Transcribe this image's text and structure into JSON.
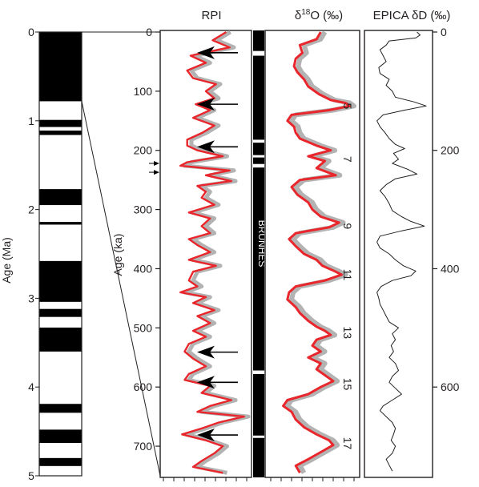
{
  "chart_data": [
    {
      "type": "polarity-column",
      "ylabel": "Age (Ma)",
      "ylim": [
        0,
        5
      ],
      "y_ticks": [
        0,
        1,
        2,
        3,
        4,
        5
      ],
      "tick_labels": [
        "0",
        "1",
        "2",
        "3",
        "4",
        "5"
      ],
      "white_intervals": [
        [
          0.78,
          0.99
        ],
        [
          1.07,
          1.11
        ],
        [
          1.16,
          1.77
        ],
        [
          1.95,
          2.14
        ],
        [
          2.17,
          2.58
        ],
        [
          3.04,
          3.12
        ],
        [
          3.21,
          3.33
        ],
        [
          3.6,
          4.19
        ],
        [
          4.29,
          4.48
        ],
        [
          4.63,
          4.8
        ],
        [
          4.89,
          5.0
        ]
      ],
      "expanded_interval_ka": [
        0,
        780
      ]
    },
    {
      "type": "line",
      "title": "RPI",
      "ylabel": "Age (ka)",
      "ylim": [
        0,
        750
      ],
      "y_ticks": [
        0,
        100,
        200,
        300,
        400,
        500,
        600,
        700
      ],
      "tick_labels": [
        "0",
        "100",
        "200",
        "300",
        "400",
        "500",
        "600",
        "700"
      ],
      "x_ticks_count": 9,
      "series": [
        {
          "color": "#e8262b",
          "points": [
            [
              0,
              0.74
            ],
            [
              14,
              0.58
            ],
            [
              26,
              0.78
            ],
            [
              40,
              0.32
            ],
            [
              52,
              0.5
            ],
            [
              65,
              0.28
            ],
            [
              78,
              0.35
            ],
            [
              88,
              0.62
            ],
            [
              100,
              0.5
            ],
            [
              112,
              0.6
            ],
            [
              122,
              0.38
            ],
            [
              132,
              0.55
            ],
            [
              145,
              0.35
            ],
            [
              158,
              0.6
            ],
            [
              170,
              0.46
            ],
            [
              182,
              0.28
            ],
            [
              192,
              0.28
            ],
            [
              200,
              0.4
            ],
            [
              210,
              0.7
            ],
            [
              220,
              0.28
            ],
            [
              226,
              0.2
            ],
            [
              234,
              0.78
            ],
            [
              242,
              0.5
            ],
            [
              252,
              0.8
            ],
            [
              260,
              0.4
            ],
            [
              270,
              0.5
            ],
            [
              280,
              0.45
            ],
            [
              292,
              0.6
            ],
            [
              305,
              0.3
            ],
            [
              315,
              0.55
            ],
            [
              328,
              0.45
            ],
            [
              340,
              0.55
            ],
            [
              350,
              0.3
            ],
            [
              360,
              0.4
            ],
            [
              372,
              0.55
            ],
            [
              385,
              0.3
            ],
            [
              395,
              0.62
            ],
            [
              405,
              0.35
            ],
            [
              420,
              0.3
            ],
            [
              430,
              0.4
            ],
            [
              440,
              0.2
            ],
            [
              448,
              0.5
            ],
            [
              458,
              0.35
            ],
            [
              470,
              0.6
            ],
            [
              480,
              0.4
            ],
            [
              492,
              0.55
            ],
            [
              505,
              0.35
            ],
            [
              515,
              0.5
            ],
            [
              527,
              0.3
            ],
            [
              540,
              0.25
            ],
            [
              552,
              0.35
            ],
            [
              565,
              0.5
            ],
            [
              578,
              0.3
            ],
            [
              588,
              0.25
            ],
            [
              598,
              0.55
            ],
            [
              610,
              0.45
            ],
            [
              622,
              0.8
            ],
            [
              632,
              0.55
            ],
            [
              642,
              0.4
            ],
            [
              650,
              0.95
            ],
            [
              660,
              0.65
            ],
            [
              670,
              0.45
            ],
            [
              680,
              0.22
            ],
            [
              690,
              0.5
            ],
            [
              700,
              0.7
            ],
            [
              712,
              0.6
            ],
            [
              725,
              0.45
            ],
            [
              735,
              0.35
            ],
            [
              745,
              0.7
            ]
          ]
        },
        {
          "color": "#b3b3b3",
          "role": "uncertainty"
        }
      ],
      "annotations": [
        {
          "type": "arrow",
          "age": 35
        },
        {
          "type": "arrow",
          "age": 122
        },
        {
          "type": "arrow",
          "age": 194
        },
        {
          "type": "small-arrow",
          "age": 222
        },
        {
          "type": "small-arrow",
          "age": 237
        },
        {
          "type": "arrow",
          "age": 541
        },
        {
          "type": "arrow",
          "age": 592
        },
        {
          "type": "arrow",
          "age": 681
        }
      ]
    },
    {
      "type": "polarity-column",
      "label": "BRUNHES",
      "white_intervals_ka": [
        [
          32,
          40
        ],
        [
          182,
          187
        ],
        [
          208,
          212
        ],
        [
          223,
          229
        ],
        [
          572,
          578
        ],
        [
          682,
          686
        ]
      ]
    },
    {
      "type": "line",
      "title_main": "δ",
      "title_sup": "18",
      "title_rest": "O (‰)",
      "x_ticks_count": 9,
      "stage_labels": [
        {
          "label": "5",
          "age": 125
        },
        {
          "label": "7",
          "age": 215
        },
        {
          "label": "9",
          "age": 328
        },
        {
          "label": "11",
          "age": 410
        },
        {
          "label": "13",
          "age": 508
        },
        {
          "label": "15",
          "age": 595
        },
        {
          "label": "17",
          "age": 695
        }
      ],
      "series": [
        {
          "color": "#e8262b",
          "points": [
            [
              0,
              0.6
            ],
            [
              12,
              0.55
            ],
            [
              22,
              0.35
            ],
            [
              35,
              0.38
            ],
            [
              45,
              0.3
            ],
            [
              58,
              0.28
            ],
            [
              68,
              0.32
            ],
            [
              80,
              0.4
            ],
            [
              92,
              0.45
            ],
            [
              105,
              0.58
            ],
            [
              115,
              0.72
            ],
            [
              120,
              0.9
            ],
            [
              125,
              0.95
            ],
            [
              132,
              0.7
            ],
            [
              140,
              0.25
            ],
            [
              150,
              0.2
            ],
            [
              160,
              0.28
            ],
            [
              170,
              0.3
            ],
            [
              180,
              0.35
            ],
            [
              192,
              0.55
            ],
            [
              200,
              0.72
            ],
            [
              210,
              0.45
            ],
            [
              218,
              0.65
            ],
            [
              230,
              0.55
            ],
            [
              242,
              0.78
            ],
            [
              250,
              0.35
            ],
            [
              262,
              0.25
            ],
            [
              275,
              0.32
            ],
            [
              288,
              0.45
            ],
            [
              300,
              0.5
            ],
            [
              312,
              0.6
            ],
            [
              322,
              0.82
            ],
            [
              330,
              0.7
            ],
            [
              340,
              0.3
            ],
            [
              350,
              0.22
            ],
            [
              362,
              0.3
            ],
            [
              375,
              0.4
            ],
            [
              385,
              0.55
            ],
            [
              395,
              0.62
            ],
            [
              403,
              0.75
            ],
            [
              410,
              0.85
            ],
            [
              420,
              0.65
            ],
            [
              430,
              0.3
            ],
            [
              440,
              0.22
            ],
            [
              452,
              0.2
            ],
            [
              465,
              0.3
            ],
            [
              475,
              0.35
            ],
            [
              488,
              0.45
            ],
            [
              498,
              0.55
            ],
            [
              505,
              0.65
            ],
            [
              512,
              0.72
            ],
            [
              520,
              0.55
            ],
            [
              530,
              0.5
            ],
            [
              540,
              0.6
            ],
            [
              550,
              0.45
            ],
            [
              560,
              0.6
            ],
            [
              570,
              0.55
            ],
            [
              580,
              0.65
            ],
            [
              590,
              0.75
            ],
            [
              600,
              0.6
            ],
            [
              612,
              0.45
            ],
            [
              622,
              0.2
            ],
            [
              632,
              0.15
            ],
            [
              642,
              0.25
            ],
            [
              655,
              0.3
            ],
            [
              668,
              0.4
            ],
            [
              680,
              0.55
            ],
            [
              690,
              0.7
            ],
            [
              698,
              0.75
            ],
            [
              710,
              0.6
            ],
            [
              722,
              0.45
            ],
            [
              733,
              0.3
            ],
            [
              745,
              0.35
            ]
          ]
        },
        {
          "color": "#b3b3b3",
          "role": "uncertainty"
        }
      ]
    },
    {
      "type": "line",
      "title": "EPICA δD (‰)",
      "ylim": [
        0,
        750
      ],
      "y_ticks": [
        0,
        200,
        400,
        600
      ],
      "tick_labels": [
        "0",
        "200",
        "400",
        "600"
      ],
      "series": [
        {
          "color": "#231f20",
          "points": [
            [
              0,
              0.8
            ],
            [
              5,
              0.85
            ],
            [
              10,
              0.78
            ],
            [
              15,
              0.35
            ],
            [
              22,
              0.3
            ],
            [
              30,
              0.2
            ],
            [
              40,
              0.25
            ],
            [
              50,
              0.3
            ],
            [
              60,
              0.18
            ],
            [
              70,
              0.2
            ],
            [
              80,
              0.35
            ],
            [
              90,
              0.3
            ],
            [
              100,
              0.4
            ],
            [
              110,
              0.45
            ],
            [
              118,
              0.75
            ],
            [
              125,
              0.95
            ],
            [
              132,
              0.6
            ],
            [
              140,
              0.25
            ],
            [
              150,
              0.15
            ],
            [
              160,
              0.2
            ],
            [
              170,
              0.28
            ],
            [
              180,
              0.35
            ],
            [
              190,
              0.45
            ],
            [
              197,
              0.6
            ],
            [
              205,
              0.42
            ],
            [
              215,
              0.5
            ],
            [
              222,
              0.4
            ],
            [
              232,
              0.65
            ],
            [
              240,
              0.8
            ],
            [
              248,
              0.45
            ],
            [
              258,
              0.3
            ],
            [
              268,
              0.2
            ],
            [
              278,
              0.28
            ],
            [
              290,
              0.35
            ],
            [
              302,
              0.4
            ],
            [
              312,
              0.55
            ],
            [
              320,
              0.7
            ],
            [
              328,
              0.92
            ],
            [
              336,
              0.55
            ],
            [
              345,
              0.2
            ],
            [
              355,
              0.15
            ],
            [
              365,
              0.2
            ],
            [
              375,
              0.35
            ],
            [
              385,
              0.45
            ],
            [
              395,
              0.58
            ],
            [
              404,
              0.78
            ],
            [
              412,
              0.7
            ],
            [
              420,
              0.4
            ],
            [
              430,
              0.22
            ],
            [
              440,
              0.15
            ],
            [
              450,
              0.18
            ],
            [
              460,
              0.2
            ],
            [
              470,
              0.25
            ],
            [
              480,
              0.3
            ],
            [
              490,
              0.35
            ],
            [
              500,
              0.5
            ],
            [
              510,
              0.4
            ],
            [
              520,
              0.45
            ],
            [
              530,
              0.38
            ],
            [
              540,
              0.42
            ],
            [
              550,
              0.35
            ],
            [
              560,
              0.45
            ],
            [
              572,
              0.5
            ],
            [
              582,
              0.4
            ],
            [
              592,
              0.35
            ],
            [
              602,
              0.45
            ],
            [
              612,
              0.55
            ],
            [
              622,
              0.4
            ],
            [
              632,
              0.25
            ],
            [
              640,
              0.2
            ],
            [
              650,
              0.3
            ],
            [
              660,
              0.4
            ],
            [
              670,
              0.45
            ],
            [
              680,
              0.42
            ],
            [
              690,
              0.38
            ],
            [
              700,
              0.45
            ],
            [
              712,
              0.4
            ],
            [
              722,
              0.3
            ],
            [
              732,
              0.35
            ],
            [
              742,
              0.4
            ]
          ]
        }
      ]
    }
  ]
}
